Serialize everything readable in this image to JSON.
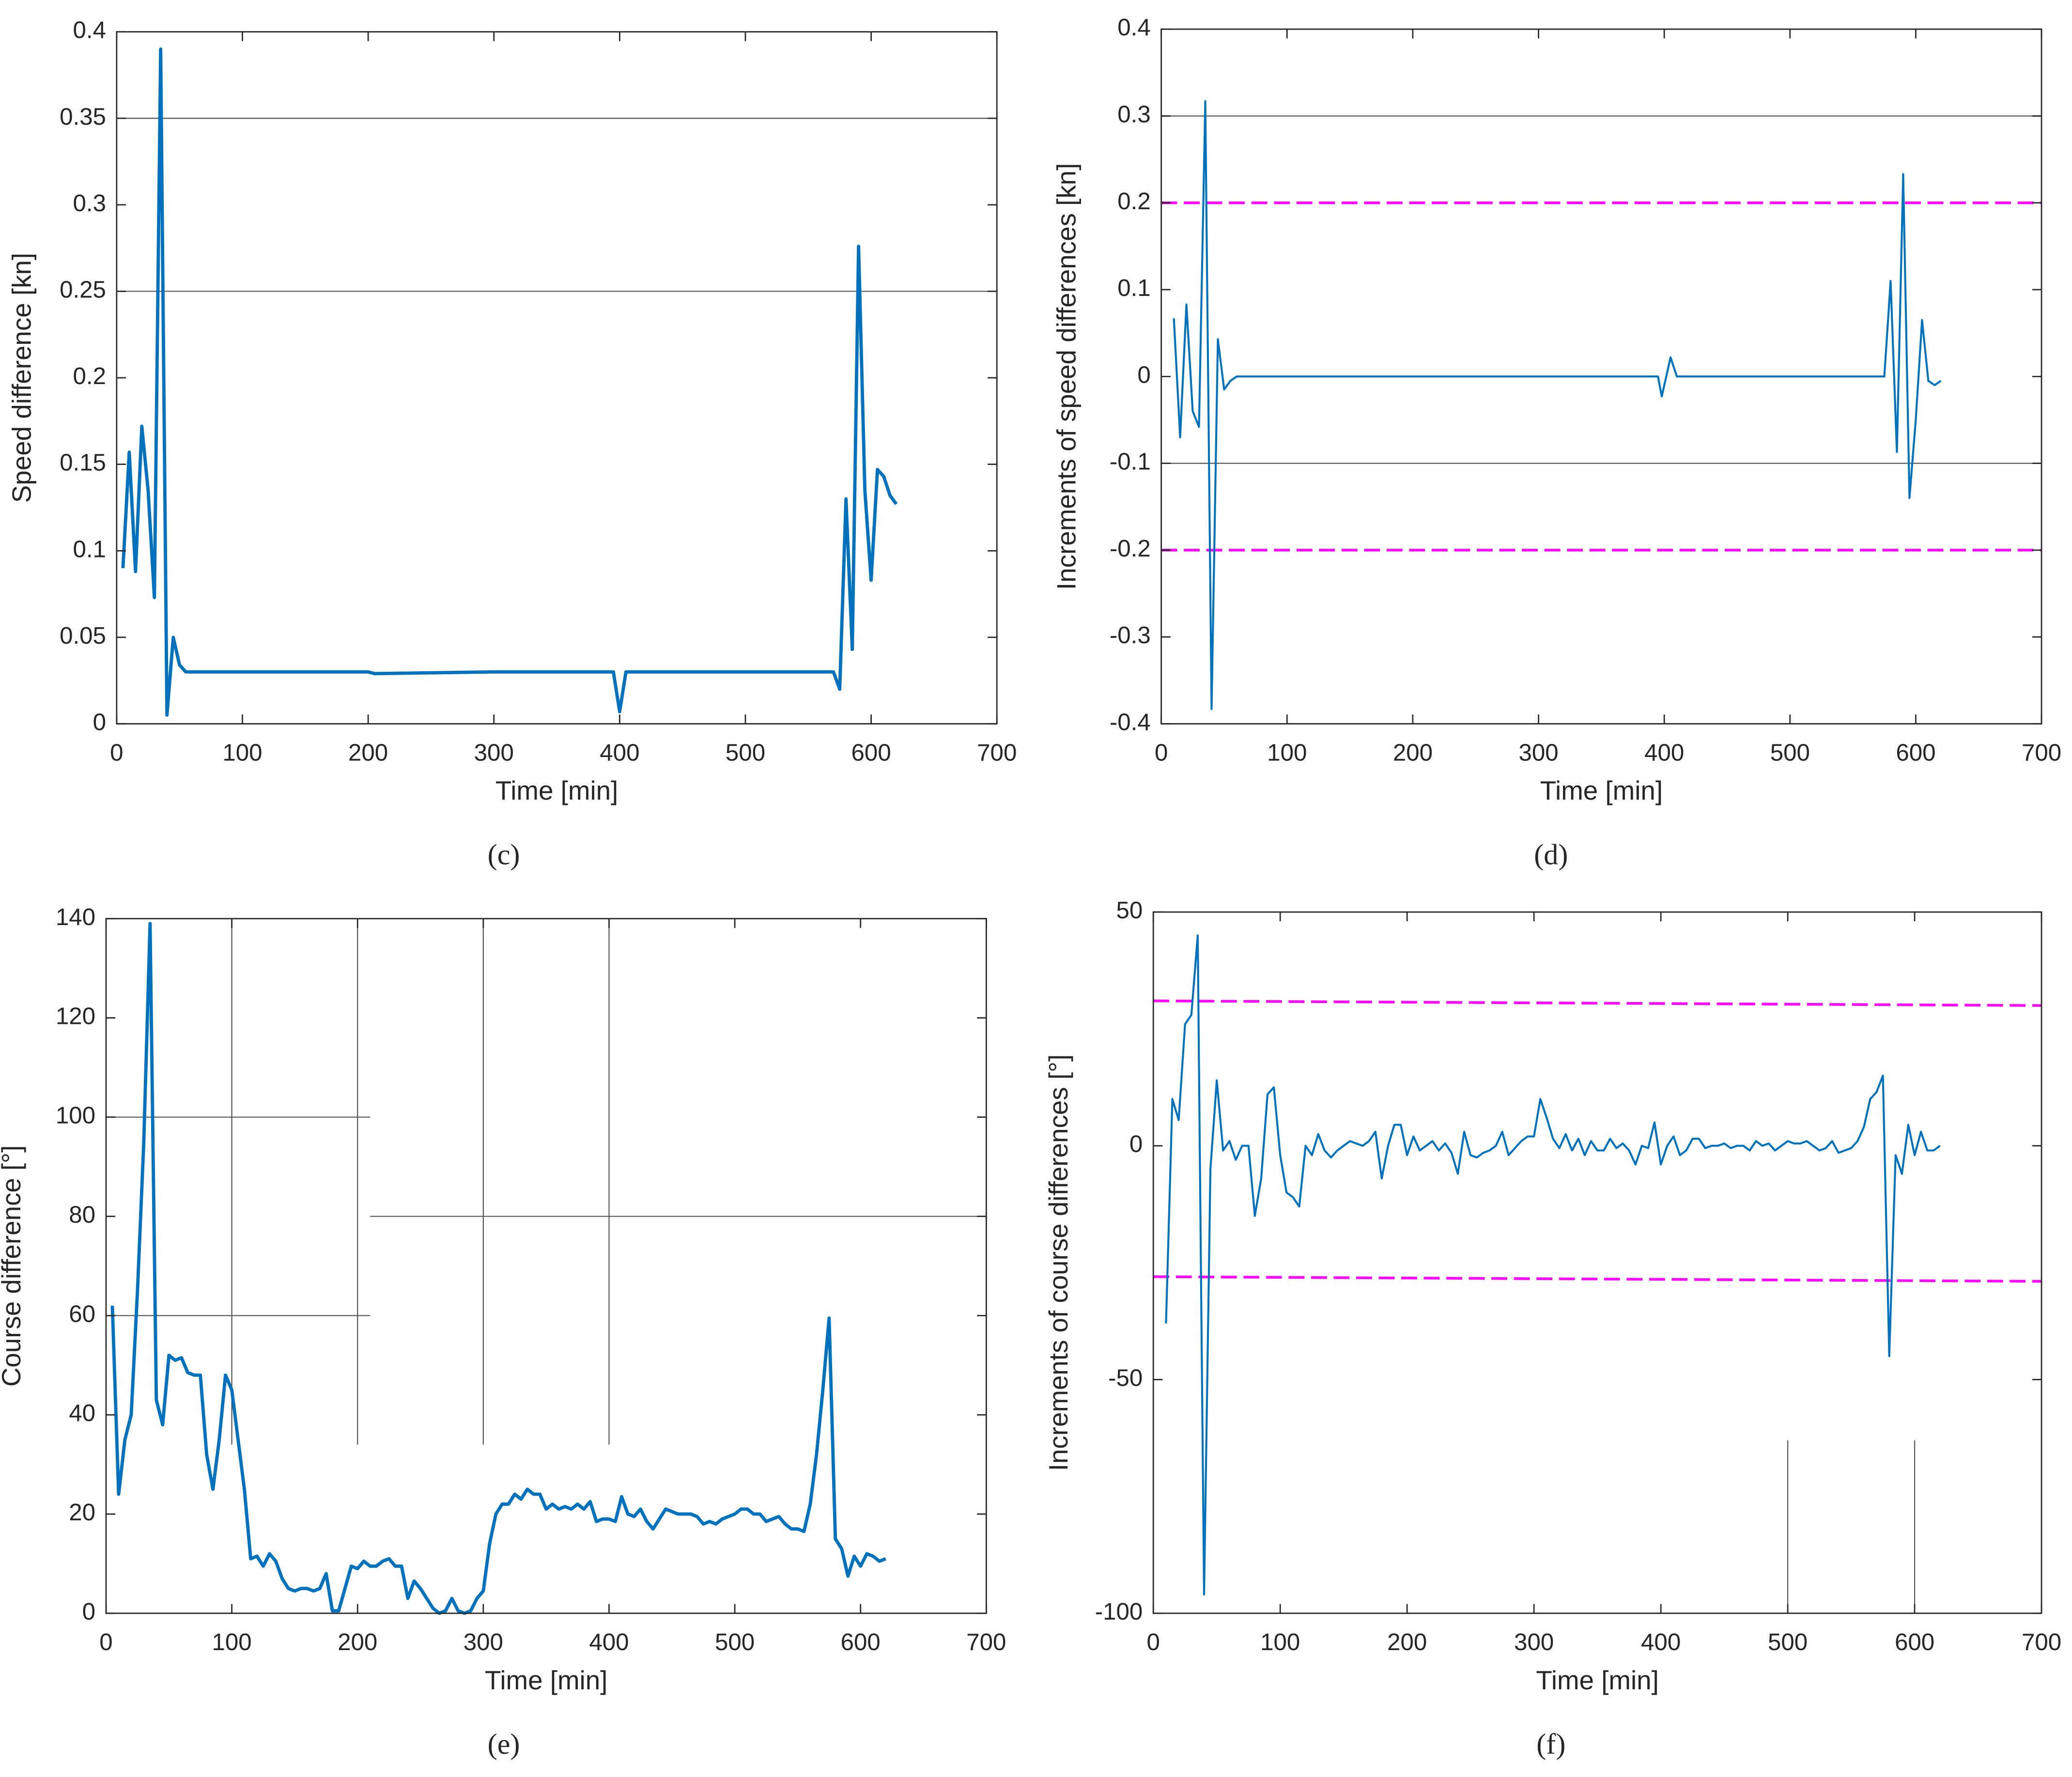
{
  "chart_data": [
    {
      "type": "line",
      "panel_label": "(c)",
      "xlabel": "Time [min]",
      "ylabel": "Speed difference [kn]",
      "xlim": [
        0,
        700
      ],
      "xticks": [
        0,
        100,
        200,
        300,
        400,
        500,
        600,
        700
      ],
      "ylim": [
        0,
        0.4
      ],
      "yticks": [
        0,
        0.05,
        0.1,
        0.15,
        0.2,
        0.25,
        0.3,
        0.35,
        0.4
      ],
      "x": [
        5,
        10,
        15,
        20,
        25,
        30,
        35,
        40,
        45,
        50,
        55,
        60,
        100,
        200,
        205,
        300,
        395,
        400,
        405,
        500,
        570,
        575,
        580,
        585,
        590,
        595,
        600,
        605,
        610,
        615,
        620
      ],
      "values": [
        0.09,
        0.157,
        0.088,
        0.172,
        0.135,
        0.073,
        0.39,
        0.005,
        0.05,
        0.034,
        0.03,
        0.03,
        0.03,
        0.03,
        0.029,
        0.03,
        0.03,
        0.007,
        0.03,
        0.03,
        0.03,
        0.02,
        0.13,
        0.043,
        0.276,
        0.135,
        0.083,
        0.147,
        0.143,
        0.132,
        0.127
      ],
      "color": "#0072bd",
      "line_width": 2.5,
      "reference_lines": [
        {
          "x": [
            0,
            700
          ],
          "values": [
            0.35,
            0.35
          ],
          "color": "#555555",
          "dashed": false
        },
        {
          "x": [
            0,
            700
          ],
          "values": [
            0.25,
            0.25
          ],
          "color": "#555555",
          "dashed": false
        }
      ]
    },
    {
      "type": "line",
      "panel_label": "(d)",
      "xlabel": "Time [min]",
      "ylabel": "Increments of speed differences [kn]",
      "xlim": [
        0,
        700
      ],
      "xticks": [
        0,
        100,
        200,
        300,
        400,
        500,
        600,
        700
      ],
      "ylim": [
        -0.4,
        0.4
      ],
      "yticks": [
        -0.4,
        -0.3,
        -0.2,
        -0.1,
        0,
        0.1,
        0.2,
        0.3,
        0.4
      ],
      "x": [
        10,
        15,
        20,
        25,
        30,
        35,
        40,
        45,
        50,
        55,
        60,
        100,
        395,
        398,
        405,
        410,
        575,
        580,
        585,
        590,
        595,
        600,
        605,
        610,
        615,
        620
      ],
      "values": [
        0.067,
        -0.07,
        0.083,
        -0.04,
        -0.058,
        0.317,
        -0.383,
        0.043,
        -0.015,
        -0.005,
        0,
        0,
        0,
        -0.023,
        0.022,
        0,
        0,
        0.11,
        -0.087,
        0.233,
        -0.14,
        -0.05,
        0.065,
        -0.005,
        -0.01,
        -0.005
      ],
      "color": "#0072bd",
      "line_width": 1.5,
      "reference_lines": [
        {
          "x": [
            0,
            700
          ],
          "values": [
            0.3,
            0.3
          ],
          "color": "#555555",
          "dashed": false
        },
        {
          "x": [
            0,
            700
          ],
          "values": [
            -0.1,
            -0.1
          ],
          "color": "#555555",
          "dashed": false
        },
        {
          "x": [
            0,
            700
          ],
          "values": [
            0.2,
            0.2
          ],
          "color": "#ff00ff",
          "dashed": true
        },
        {
          "x": [
            0,
            700
          ],
          "values": [
            -0.2,
            -0.2
          ],
          "color": "#ff00ff",
          "dashed": true
        }
      ]
    },
    {
      "type": "line",
      "panel_label": "(e)",
      "xlabel": "Time [min]",
      "ylabel": "Course difference [°]",
      "xlim": [
        0,
        700
      ],
      "xticks": [
        0,
        100,
        200,
        300,
        400,
        500,
        600,
        700
      ],
      "ylim": [
        0,
        140
      ],
      "yticks": [
        0,
        20,
        40,
        60,
        80,
        100,
        120,
        140
      ],
      "x": [
        5,
        10,
        15,
        20,
        25,
        30,
        35,
        40,
        45,
        50,
        55,
        60,
        65,
        70,
        75,
        80,
        85,
        90,
        95,
        100,
        105,
        110,
        115,
        120,
        125,
        130,
        135,
        140,
        145,
        150,
        155,
        160,
        165,
        170,
        175,
        180,
        185,
        190,
        195,
        200,
        205,
        210,
        215,
        220,
        225,
        230,
        235,
        240,
        245,
        250,
        255,
        260,
        265,
        270,
        275,
        280,
        285,
        290,
        295,
        300,
        305,
        310,
        315,
        320,
        325,
        330,
        335,
        340,
        345,
        350,
        355,
        360,
        365,
        370,
        375,
        380,
        385,
        390,
        395,
        400,
        405,
        410,
        415,
        420,
        425,
        430,
        435,
        440,
        445,
        450,
        455,
        460,
        465,
        470,
        475,
        480,
        485,
        490,
        495,
        500,
        505,
        510,
        515,
        520,
        525,
        530,
        535,
        540,
        545,
        550,
        555,
        560,
        565,
        570,
        575,
        580,
        585,
        590,
        595,
        600,
        605,
        610,
        615,
        620
      ],
      "values": [
        62,
        24,
        35,
        40,
        65,
        95,
        139,
        43,
        38,
        52,
        51,
        51.5,
        48.5,
        48,
        48,
        32,
        25,
        35,
        48,
        45,
        35,
        25,
        11,
        11.5,
        9.5,
        12,
        10.5,
        7,
        5,
        4.5,
        5,
        5,
        4.5,
        5,
        8,
        0.5,
        0.5,
        5,
        9.5,
        9,
        10.5,
        9.5,
        9.5,
        10.5,
        11,
        9.5,
        9.5,
        3,
        6.5,
        5,
        3,
        1,
        0,
        0.5,
        3,
        0.5,
        0,
        0.5,
        3,
        4.5,
        14,
        20,
        22,
        22,
        24,
        23,
        25,
        24,
        24,
        21,
        22,
        21,
        21.5,
        21,
        22,
        21,
        22.5,
        18.5,
        19,
        19,
        18.5,
        23.5,
        20,
        19.5,
        21,
        18.5,
        17,
        19,
        21,
        20.5,
        20,
        20,
        20,
        19.5,
        18,
        18.5,
        18,
        19,
        19.5,
        20,
        21,
        21,
        20,
        20,
        18.5,
        19,
        19.5,
        18,
        17,
        17,
        16.5,
        22,
        32,
        45,
        59.5,
        15,
        13,
        7.5,
        11.5,
        9.5,
        12,
        11.5,
        10.5,
        11
      ],
      "color": "#0072bd",
      "line_width": 2.5,
      "reference_lines": [
        {
          "x": [
            100,
            100
          ],
          "values": [
            34,
            140
          ],
          "color": "#555555",
          "dashed": false
        },
        {
          "x": [
            200,
            200
          ],
          "values": [
            34,
            140
          ],
          "color": "#555555",
          "dashed": false
        },
        {
          "x": [
            300,
            300
          ],
          "values": [
            34,
            140
          ],
          "color": "#555555",
          "dashed": false
        },
        {
          "x": [
            400,
            400
          ],
          "values": [
            34,
            140
          ],
          "color": "#555555",
          "dashed": false
        },
        {
          "x": [
            0,
            210
          ],
          "values": [
            100,
            100
          ],
          "color": "#555555",
          "dashed": false
        },
        {
          "x": [
            0,
            210
          ],
          "values": [
            60,
            60
          ],
          "color": "#555555",
          "dashed": false
        },
        {
          "x": [
            210,
            700
          ],
          "values": [
            80,
            80
          ],
          "color": "#555555",
          "dashed": false
        }
      ]
    },
    {
      "type": "line",
      "panel_label": "(f)",
      "xlabel": "Time [min]",
      "ylabel": "Increments of course differences [°]",
      "xlim": [
        0,
        700
      ],
      "xticks": [
        0,
        100,
        200,
        300,
        400,
        500,
        600,
        700
      ],
      "ylim": [
        -100,
        50
      ],
      "yticks": [
        -100,
        -50,
        0,
        50
      ],
      "x": [
        10,
        15,
        20,
        25,
        30,
        35,
        40,
        45,
        50,
        55,
        60,
        65,
        70,
        75,
        80,
        85,
        90,
        95,
        100,
        105,
        110,
        115,
        120,
        125,
        130,
        135,
        140,
        145,
        150,
        155,
        160,
        165,
        170,
        175,
        180,
        185,
        190,
        195,
        200,
        205,
        210,
        215,
        220,
        225,
        230,
        235,
        240,
        245,
        250,
        255,
        260,
        265,
        270,
        275,
        280,
        285,
        290,
        295,
        300,
        305,
        310,
        315,
        320,
        325,
        330,
        335,
        340,
        345,
        350,
        355,
        360,
        365,
        370,
        375,
        380,
        385,
        390,
        395,
        400,
        405,
        410,
        415,
        420,
        425,
        430,
        435,
        440,
        445,
        450,
        455,
        460,
        465,
        470,
        475,
        480,
        485,
        490,
        495,
        500,
        505,
        510,
        515,
        520,
        525,
        530,
        535,
        540,
        545,
        550,
        555,
        560,
        565,
        570,
        575,
        580,
        585,
        590,
        595,
        600,
        605,
        610,
        615,
        620
      ],
      "values": [
        -38,
        10,
        5.5,
        26,
        28,
        45,
        -96,
        -5,
        14,
        -1,
        1,
        -3,
        0,
        0,
        -15,
        -7,
        11,
        12.5,
        -2,
        -10,
        -11,
        -13,
        0,
        -2,
        2.5,
        -1,
        -2.5,
        -1,
        0,
        1,
        0.5,
        0,
        1,
        3,
        -7,
        0,
        4.5,
        4.5,
        -2,
        2,
        -1,
        0,
        1,
        -1,
        0.5,
        -1.5,
        -6,
        3,
        -2,
        -2.5,
        -1.5,
        -1,
        0,
        3,
        -2,
        -0.5,
        1,
        2,
        2,
        10,
        6,
        1.5,
        -0.5,
        2.5,
        -1,
        1.5,
        -2,
        1,
        -1,
        -1,
        1.5,
        -0.5,
        0.5,
        -1,
        -4,
        0,
        -0.5,
        5,
        -4,
        0,
        2,
        -2,
        -1,
        1.5,
        1.5,
        -0.5,
        0,
        0,
        0.5,
        -0.5,
        0,
        0,
        -1,
        1,
        0,
        0.5,
        -1,
        0,
        1,
        0.5,
        0.5,
        1,
        0,
        -1,
        -0.5,
        1,
        -1.5,
        -1,
        -0.5,
        1,
        4,
        10,
        11.5,
        15,
        -45,
        -2,
        -6,
        4.5,
        -2,
        3,
        -1,
        -1,
        0
      ],
      "color": "#0072bd",
      "line_width": 1.5,
      "reference_lines": [
        {
          "x": [
            0,
            700
          ],
          "values": [
            31,
            30
          ],
          "color": "#ff00ff",
          "dashed": true
        },
        {
          "x": [
            0,
            700
          ],
          "values": [
            -28,
            -29
          ],
          "color": "#ff00ff",
          "dashed": true
        },
        {
          "x": [
            500,
            500
          ],
          "values": [
            -100,
            -63
          ],
          "color": "#555555",
          "dashed": false
        },
        {
          "x": [
            600,
            600
          ],
          "values": [
            -100,
            -63
          ],
          "color": "#555555",
          "dashed": false
        }
      ]
    }
  ]
}
